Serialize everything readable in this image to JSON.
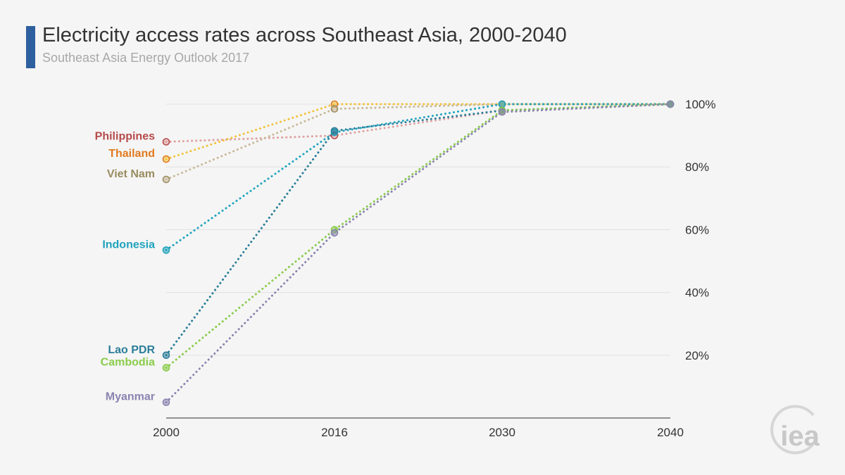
{
  "header": {
    "title": "Electricity access rates across Southeast Asia, 2000-2040",
    "subtitle": "Southeast Asia Energy Outlook 2017",
    "accent_color": "#2e5f9e"
  },
  "logo": {
    "text": "iea"
  },
  "chart_data": {
    "type": "line",
    "title": "Electricity access rates across Southeast Asia, 2000-2040",
    "subtitle": "Southeast Asia Energy Outlook 2017",
    "x": [
      2000,
      2016,
      2030,
      2040
    ],
    "x_tick_labels": [
      "2000",
      "2016",
      "2030",
      "2040"
    ],
    "ylim": [
      0,
      100
    ],
    "y_ticks": [
      20,
      40,
      60,
      80,
      100
    ],
    "y_tick_labels": [
      "20%",
      "40%",
      "60%",
      "80%",
      "100%"
    ],
    "y_axis_position": "right",
    "grid": true,
    "line_style": "dotted",
    "series": [
      {
        "name": "Philippines",
        "values": [
          88,
          90,
          98,
          100
        ],
        "color": "#b64b4b",
        "line_color": "#e0a0a0"
      },
      {
        "name": "Thailand",
        "values": [
          82.5,
          100,
          100,
          100
        ],
        "color": "#e07a1f",
        "line_color": "#f2c23a"
      },
      {
        "name": "Viet Nam",
        "values": [
          76,
          98.5,
          100,
          100
        ],
        "color": "#9a8c60",
        "line_color": "#c9b999"
      },
      {
        "name": "Indonesia",
        "values": [
          53.5,
          91,
          100,
          100
        ],
        "color": "#1fa3bd",
        "line_color": "#1fa3bd"
      },
      {
        "name": "Lao PDR",
        "values": [
          20,
          91.5,
          98,
          100
        ],
        "color": "#2b7e99",
        "line_color": "#2b7e99"
      },
      {
        "name": "Cambodia",
        "values": [
          16,
          60,
          98,
          100
        ],
        "color": "#8acc4c",
        "line_color": "#8acc4c"
      },
      {
        "name": "Myanmar",
        "values": [
          5,
          59,
          97.5,
          100
        ],
        "color": "#8a84b0",
        "line_color": "#8a84b0"
      }
    ]
  }
}
